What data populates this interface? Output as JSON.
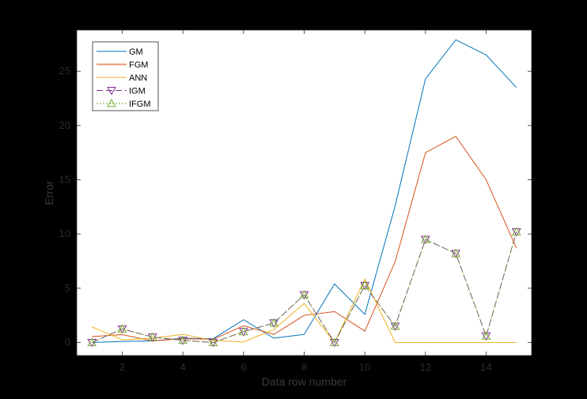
{
  "chart_data": {
    "type": "line",
    "title": "",
    "xlabel": "Data row number",
    "ylabel": "Error",
    "xlim": [
      0.5,
      15.5
    ],
    "ylim": [
      -1.2,
      28.8
    ],
    "xticks": [
      2,
      4,
      6,
      8,
      10,
      12,
      14
    ],
    "yticks": [
      0,
      5,
      10,
      15,
      20,
      25
    ],
    "grid": false,
    "legend_placement": "top-left",
    "x": [
      1,
      2,
      3,
      4,
      5,
      6,
      7,
      8,
      9,
      10,
      11,
      12,
      13,
      14,
      15
    ],
    "series": [
      {
        "name": "GM",
        "color": "#0072BD",
        "style": "solid",
        "marker": "none",
        "values": [
          0,
          0.1,
          0.15,
          0.4,
          0.35,
          2.1,
          0.4,
          0.75,
          5.4,
          2.6,
          12.6,
          24.3,
          27.9,
          26.5,
          23.5
        ]
      },
      {
        "name": "FGM",
        "color": "#D95319",
        "style": "solid",
        "marker": "none",
        "values": [
          0.55,
          0.73,
          0.15,
          0.35,
          0.3,
          1.55,
          0.75,
          2.5,
          2.85,
          1.05,
          7.45,
          17.5,
          19.0,
          15.0,
          8.7
        ]
      },
      {
        "name": "ANN",
        "color": "#EDB120",
        "style": "solid",
        "marker": "none",
        "values": [
          1.45,
          0.25,
          0.4,
          0.75,
          0.2,
          0.05,
          1.2,
          3.6,
          0,
          5.85,
          0,
          0,
          0,
          0,
          0
        ]
      },
      {
        "name": "IGM",
        "color": "#7E2F8E",
        "style": "dashed",
        "marker": "triangle-down",
        "values": [
          0,
          1.25,
          0.5,
          0.2,
          0,
          1.0,
          1.8,
          4.4,
          0,
          5.25,
          1.5,
          9.5,
          8.2,
          0.6,
          10.2
        ]
      },
      {
        "name": "IFGM",
        "color": "#77AC30",
        "style": "dotted",
        "marker": "triangle-up",
        "values": [
          0,
          1.25,
          0.5,
          0.2,
          0,
          1.0,
          1.8,
          4.4,
          0,
          5.25,
          1.5,
          9.5,
          8.2,
          0.6,
          10.2
        ]
      }
    ]
  }
}
